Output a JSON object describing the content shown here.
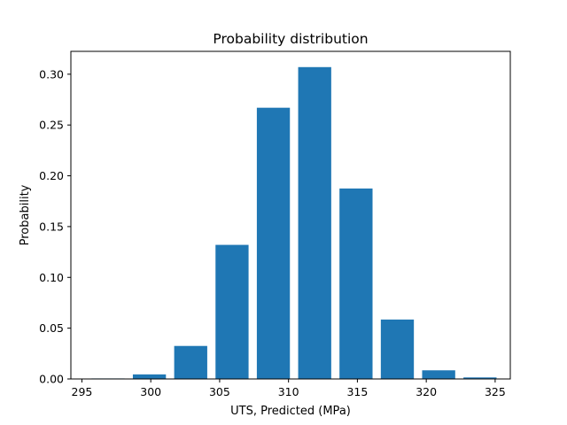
{
  "chart_data": {
    "type": "bar",
    "title": "Probability distribution",
    "xlabel": "UTS, Predicted (MPa)",
    "ylabel": "Probability",
    "xlim": [
      294.2,
      326.1
    ],
    "ylim": [
      0,
      0.3225
    ],
    "x_ticks": [
      295,
      300,
      305,
      310,
      315,
      320,
      325
    ],
    "x_tick_labels": [
      "295",
      "300",
      "305",
      "310",
      "315",
      "320",
      "325"
    ],
    "y_ticks": [
      0.0,
      0.05,
      0.1,
      0.15,
      0.2,
      0.25,
      0.3
    ],
    "y_tick_labels": [
      "0.00",
      "0.05",
      "0.10",
      "0.15",
      "0.20",
      "0.25",
      "0.30"
    ],
    "bar_width": 2.4,
    "x": [
      296.9,
      299.9,
      302.9,
      305.9,
      308.9,
      311.9,
      314.9,
      317.9,
      320.9,
      323.9
    ],
    "values": [
      0.0005,
      0.0045,
      0.0325,
      0.132,
      0.267,
      0.307,
      0.1875,
      0.0585,
      0.0085,
      0.0015
    ],
    "color": "#1f77b4",
    "grid": false,
    "legend": "none"
  }
}
